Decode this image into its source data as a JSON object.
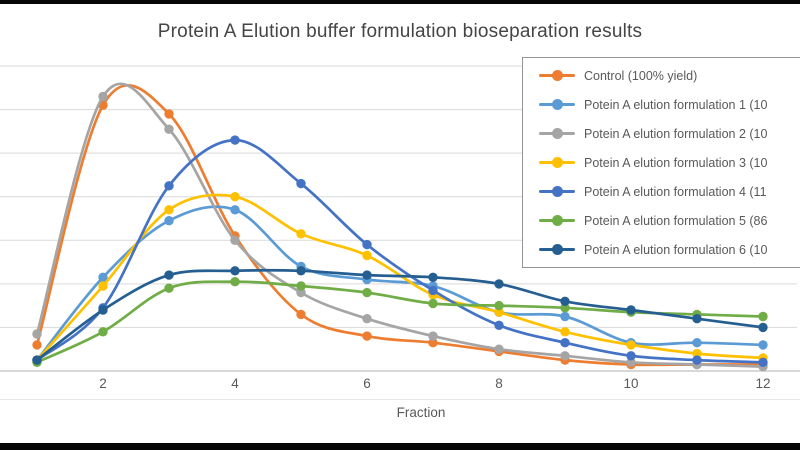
{
  "chart_data": {
    "type": "line",
    "title": "Protein A Elution buffer formulation bioseparation results",
    "xlabel": "Fraction",
    "x": [
      1,
      2,
      3,
      4,
      5,
      6,
      7,
      8,
      9,
      10,
      11,
      12
    ],
    "x_ticks_at": [
      2,
      4,
      6,
      8,
      10,
      12
    ],
    "x_tick_labels": [
      "2",
      "4",
      "6",
      "8",
      "10",
      "12"
    ],
    "xlim": [
      1,
      12
    ],
    "ylim": [
      0,
      7
    ],
    "y_grid_step": 1,
    "y_axis_note": "y-axis tick labels cropped off the left edge of the image; values below are in gridline units (1 unit = 1 horizontal gridline interval above the baseline)",
    "grid": "horizontal gridlines only",
    "smooth_lines": true,
    "legend_position": "upper right, box clipped by right edge of image",
    "series": [
      {
        "name": "Control",
        "legend_label": "Control (100% yield)",
        "color": "#ED7D31",
        "values": [
          0.6,
          6.1,
          5.9,
          3.1,
          1.3,
          0.8,
          0.65,
          0.45,
          0.25,
          0.15,
          0.15,
          0.15
        ]
      },
      {
        "name": "Potein A elution formulation 1",
        "legend_label": "Potein A elution formulation 1 (10",
        "color": "#5B9BD5",
        "values": [
          0.25,
          2.15,
          3.45,
          3.7,
          2.4,
          2.1,
          1.95,
          1.35,
          1.25,
          0.65,
          0.65,
          0.6
        ]
      },
      {
        "name": "Potein A elution formulation 2",
        "legend_label": "Potein A elution formulation 2 (10",
        "color": "#A5A5A5",
        "values": [
          0.85,
          6.3,
          5.55,
          3.0,
          1.8,
          1.2,
          0.8,
          0.5,
          0.35,
          0.2,
          0.15,
          0.1
        ]
      },
      {
        "name": "Potein A elution formulation 3",
        "legend_label": "Potein A elution formulation 3 (10",
        "color": "#FFC000",
        "values": [
          0.25,
          1.95,
          3.7,
          4.0,
          3.15,
          2.65,
          1.75,
          1.35,
          0.9,
          0.6,
          0.4,
          0.3
        ]
      },
      {
        "name": "Potein A elution formulation 4",
        "legend_label": "Potein A elution formulation 4 (11",
        "color": "#4472C4",
        "values": [
          0.25,
          1.45,
          4.25,
          5.3,
          4.3,
          2.9,
          1.85,
          1.05,
          0.65,
          0.35,
          0.25,
          0.2
        ]
      },
      {
        "name": "Potein A elution formulation 5",
        "legend_label": "Potein A elution formulation 5 (86",
        "color": "#70AD47",
        "values": [
          0.2,
          0.9,
          1.9,
          2.05,
          1.95,
          1.8,
          1.55,
          1.5,
          1.45,
          1.35,
          1.3,
          1.25
        ]
      },
      {
        "name": "Potein A elution formulation 6",
        "legend_label": "Potein A elution formulation 6 (10",
        "color": "#255E91",
        "values": [
          0.25,
          1.4,
          2.2,
          2.3,
          2.3,
          2.2,
          2.15,
          2.0,
          1.6,
          1.4,
          1.2,
          1.0
        ]
      }
    ],
    "colors": {
      "gridline": "#D9D9D9",
      "axis_line": "#BFBFBF",
      "tick_text": "#595959",
      "title_text": "#454545",
      "legend_border": "#949494",
      "frame_bars": "#060606"
    }
  }
}
